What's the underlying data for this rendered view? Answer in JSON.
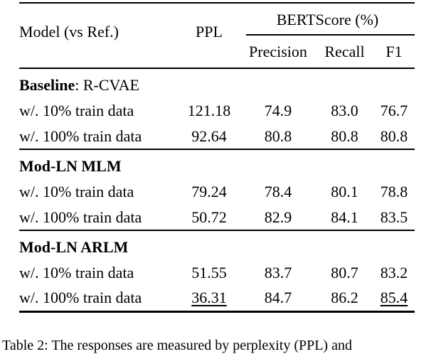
{
  "colors": {
    "text": "#000000",
    "background": "#ffffff",
    "rule": "#000000"
  },
  "table": {
    "header": {
      "model_col": "Model (vs Ref.)",
      "ppl_col": "PPL",
      "group_col": "BERTScore (%)",
      "subcols": [
        "Precision",
        "Recall",
        "F1"
      ]
    },
    "sections": [
      {
        "title_bold": "Baseline",
        "title_rest": ": R-CVAE",
        "rows": [
          {
            "label": "w/. 10% train data",
            "ppl": "121.18",
            "precision": "74.9",
            "recall": "83.0",
            "f1": "76.7"
          },
          {
            "label": "w/. 100% train data",
            "ppl": "92.64",
            "precision": "80.8",
            "recall": "80.8",
            "f1": "80.8"
          }
        ]
      },
      {
        "title_bold": "Mod-LN MLM",
        "title_rest": "",
        "rows": [
          {
            "label": "w/. 10% train data",
            "ppl": "79.24",
            "precision": "78.4",
            "recall": "80.1",
            "f1": "78.8"
          },
          {
            "label": "w/. 100% train data",
            "ppl": "50.72",
            "precision": "82.9",
            "recall": "84.1",
            "f1": "83.5"
          }
        ]
      },
      {
        "title_bold": "Mod-LN ARLM",
        "title_rest": "",
        "rows": [
          {
            "label": "w/. 10% train data",
            "ppl": "51.55",
            "precision": "83.7",
            "recall": "80.7",
            "f1": "83.2"
          },
          {
            "label": "w/. 100% train data",
            "ppl": "36.31",
            "precision": "84.7",
            "recall": "86.2",
            "f1": "85.4",
            "ppl_underlined": true,
            "f1_underlined": true
          }
        ]
      }
    ]
  },
  "caption": "Table 2: The responses are measured by perplexity (PPL) and"
}
